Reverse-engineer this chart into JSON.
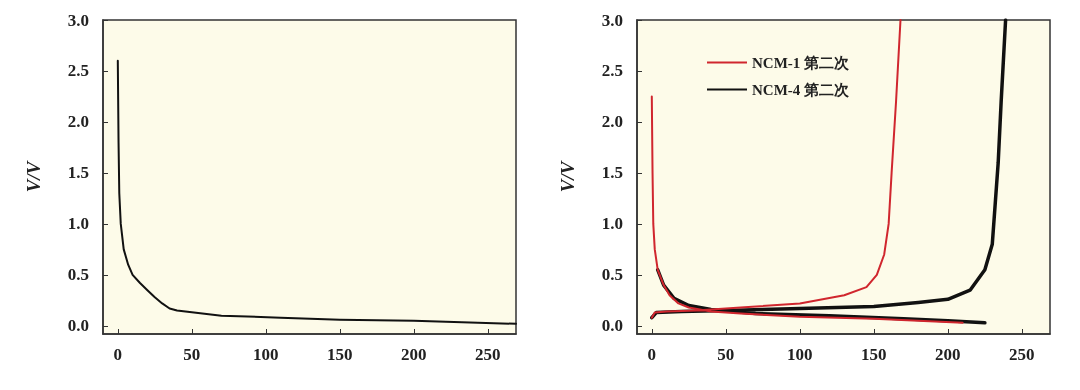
{
  "chart_data": [
    {
      "type": "line",
      "ylabel": "V/V",
      "xlim": [
        -10,
        269
      ],
      "ylim": [
        -0.08,
        3.0
      ],
      "xticks": [
        0,
        50,
        100,
        150,
        200,
        250
      ],
      "yticks": [
        {
          "value": 0,
          "label": "0.0"
        },
        {
          "value": 0.5,
          "label": "0.5"
        },
        {
          "value": 1,
          "label": "1.0"
        },
        {
          "value": 1.5,
          "label": "1.5"
        },
        {
          "value": 2,
          "label": "2.0"
        },
        {
          "value": 2.5,
          "label": "2.5"
        },
        {
          "value": 3,
          "label": "3.0"
        }
      ],
      "grid": false,
      "legend": false,
      "marker": "none",
      "line_style": "solid",
      "series": [
        {
          "color": "#111111",
          "x": [
            0,
            0.5,
            1,
            2,
            4,
            7,
            10,
            15,
            20,
            25,
            30,
            35,
            40,
            70,
            110,
            150,
            200,
            269
          ],
          "values": [
            2.6,
            1.8,
            1.3,
            1.0,
            0.75,
            0.6,
            0.5,
            0.42,
            0.35,
            0.28,
            0.22,
            0.17,
            0.15,
            0.1,
            0.08,
            0.06,
            0.05,
            0.02
          ]
        }
      ]
    },
    {
      "type": "line",
      "ylabel": "V/V",
      "xlim": [
        -10,
        269
      ],
      "ylim": [
        -0.08,
        3.0
      ],
      "xticks": [
        0,
        50,
        100,
        150,
        200,
        250
      ],
      "yticks": [
        {
          "value": 0,
          "label": "0.0"
        },
        {
          "value": 0.5,
          "label": "0.5"
        },
        {
          "value": 1,
          "label": "1.0"
        },
        {
          "value": 1.5,
          "label": "1.5"
        },
        {
          "value": 2,
          "label": "2.0"
        },
        {
          "value": 2.5,
          "label": "2.5"
        },
        {
          "value": 3,
          "label": "3.0"
        }
      ],
      "grid": false,
      "legend": "top left",
      "marker": "none",
      "line_style": "solid",
      "series": [
        {
          "name": "NCM-1 第二次",
          "color": "#d0262e",
          "x": [
            0,
            0.5,
            1,
            2,
            4,
            8,
            12,
            18,
            25,
            40,
            60,
            100,
            150,
            180,
            210,
            null,
            0,
            2,
            10,
            30,
            60,
            100,
            130,
            145,
            152,
            157,
            160,
            162,
            165,
            168
          ],
          "values": [
            2.25,
            1.5,
            1.0,
            0.75,
            0.55,
            0.4,
            0.3,
            0.22,
            0.18,
            0.14,
            0.12,
            0.09,
            0.07,
            0.05,
            0.03,
            null,
            0.08,
            0.13,
            0.14,
            0.15,
            0.18,
            0.22,
            0.3,
            0.38,
            0.5,
            0.7,
            1.0,
            1.5,
            2.2,
            3.0
          ]
        },
        {
          "name": "NCM-4 第二次",
          "color": "#111111",
          "x": [
            4,
            8,
            15,
            25,
            40,
            70,
            120,
            170,
            200,
            225,
            null,
            0,
            3,
            20,
            50,
            100,
            150,
            180,
            200,
            215,
            225,
            230,
            232,
            234,
            236,
            239
          ],
          "values": [
            0.55,
            0.4,
            0.27,
            0.2,
            0.16,
            0.12,
            0.1,
            0.07,
            0.05,
            0.03,
            null,
            0.08,
            0.13,
            0.14,
            0.15,
            0.17,
            0.19,
            0.23,
            0.26,
            0.35,
            0.55,
            0.8,
            1.2,
            1.6,
            2.2,
            3.0
          ]
        }
      ]
    }
  ]
}
